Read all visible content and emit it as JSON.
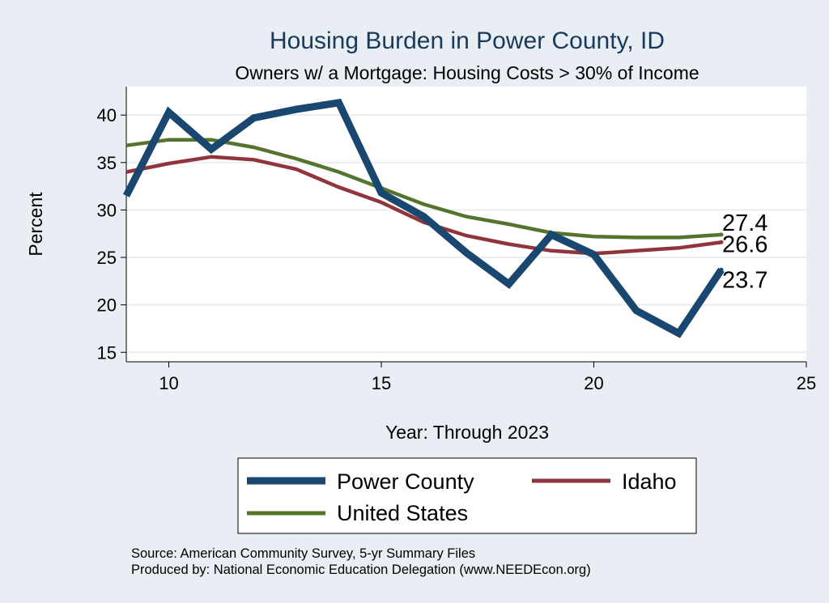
{
  "chart_data": {
    "type": "line",
    "title": "Housing Burden in Power County, ID",
    "subtitle": "Owners w/ a Mortgage: Housing Costs > 30% of Income",
    "xlabel": "Year: Through 2023",
    "ylabel": "Percent",
    "xlim": [
      9,
      25
    ],
    "ylim": [
      14,
      43
    ],
    "x_ticks": [
      10,
      15,
      20,
      25
    ],
    "y_ticks": [
      15,
      20,
      25,
      30,
      35,
      40
    ],
    "grid": "horizontal",
    "x": [
      9,
      10,
      11,
      12,
      13,
      14,
      15,
      16,
      17,
      18,
      19,
      20,
      21,
      22,
      23
    ],
    "series": [
      {
        "name": "Power County",
        "color": "#1a476f",
        "values": [
          31.5,
          40.3,
          36.4,
          39.7,
          40.6,
          41.3,
          31.8,
          29.3,
          25.5,
          22.2,
          27.4,
          25.3,
          19.4,
          17.0,
          23.7
        ],
        "end_label": "23.7"
      },
      {
        "name": "Idaho",
        "color": "#90353b",
        "values": [
          34.0,
          34.9,
          35.6,
          35.3,
          34.3,
          32.4,
          30.8,
          28.7,
          27.3,
          26.4,
          25.7,
          25.4,
          25.7,
          26.0,
          26.6
        ],
        "end_label": "26.6"
      },
      {
        "name": "United States",
        "color": "#55752f",
        "values": [
          36.8,
          37.4,
          37.4,
          36.6,
          35.4,
          34.0,
          32.3,
          30.6,
          29.3,
          28.5,
          27.6,
          27.2,
          27.1,
          27.1,
          27.4
        ],
        "end_label": "27.4"
      }
    ],
    "legend": {
      "placement": "bottom"
    }
  },
  "notes": {
    "source": "Source: American Community Survey, 5-yr Summary Files",
    "produced_by": "Produced by: National Economic Education Delegation (www.NEEDEcon.org)"
  }
}
